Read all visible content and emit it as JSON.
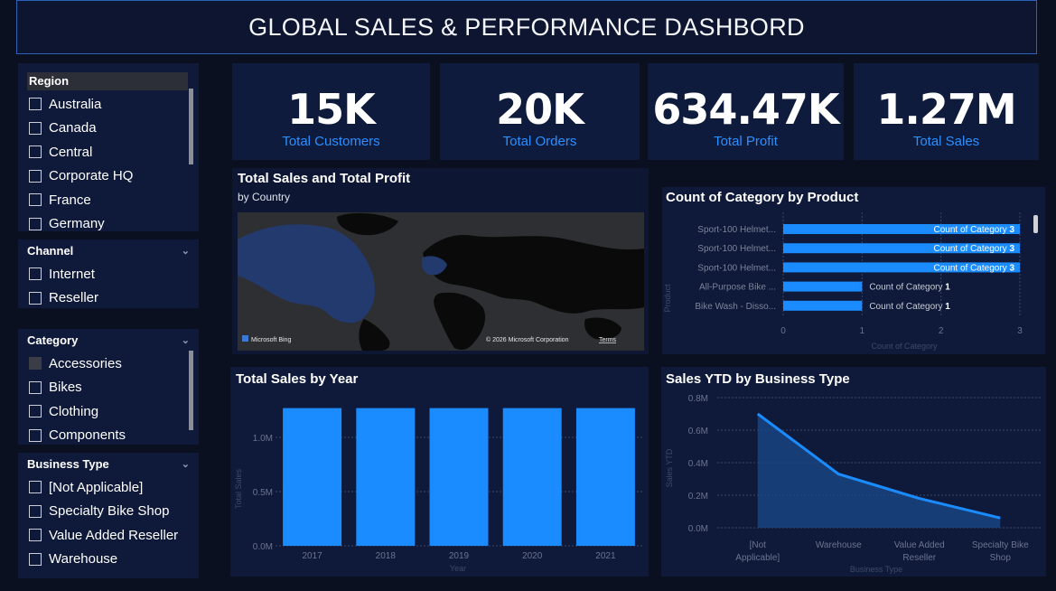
{
  "title": "GLOBAL SALES & PERFORMANCE DASHBORD",
  "slicers": {
    "region": {
      "header": "Region",
      "items": [
        "Australia",
        "Canada",
        "Central",
        "Corporate HQ",
        "France",
        "Germany"
      ]
    },
    "channel": {
      "header": "Channel",
      "items": [
        "Internet",
        "Reseller"
      ]
    },
    "category": {
      "header": "Category",
      "items": [
        "Accessories",
        "Bikes",
        "Clothing",
        "Components"
      ]
    },
    "business_type": {
      "header": "Business Type",
      "items": [
        "[Not Applicable]",
        "Specialty Bike Shop",
        "Value Added Reseller",
        "Warehouse"
      ]
    }
  },
  "kpis": [
    {
      "value": "15K",
      "label": "Total Customers"
    },
    {
      "value": "20K",
      "label": "Total Orders"
    },
    {
      "value": "634.47K",
      "label": "Total Profit"
    },
    {
      "value": "1.27M",
      "label": "Total Sales"
    }
  ],
  "map": {
    "title": "Total Sales and Total Profit",
    "subtitle": "by Country",
    "attribution": "© 2026 Microsoft Corporation",
    "terms": "Terms",
    "logo": "Microsoft Bing"
  },
  "colors": {
    "accent": "#1a8cff",
    "kpi_label": "#2b8fff",
    "panel": "#0e1733"
  },
  "chart_data": [
    {
      "type": "bar",
      "orientation": "horizontal",
      "title": "Count of Category by Product",
      "xlabel": "Count of Category",
      "ylabel": "Product",
      "categories": [
        "Sport-100 Helmet...",
        "Sport-100 Helmet...",
        "Sport-100 Helmet...",
        "All-Purpose Bike ...",
        "Bike Wash - Disso..."
      ],
      "values": [
        3,
        3,
        3,
        1,
        1
      ],
      "data_label_prefix": "Count of Category",
      "xlim": [
        0,
        3
      ],
      "xticks": [
        "0",
        "1",
        "2",
        "3"
      ]
    },
    {
      "type": "bar",
      "title": "Total Sales by Year",
      "xlabel": "Year",
      "ylabel": "Total Sales",
      "categories": [
        "2017",
        "2018",
        "2019",
        "2020",
        "2021"
      ],
      "values": [
        1.27,
        1.27,
        1.27,
        1.27,
        1.27
      ],
      "unit": "M",
      "ylim": [
        0,
        1.4
      ],
      "yticks": [
        "0.0M",
        "0.5M",
        "1.0M"
      ]
    },
    {
      "type": "area",
      "title": "Sales YTD by Business Type",
      "xlabel": "Business Type",
      "ylabel": "Sales YTD",
      "categories": [
        "[Not Applicable]",
        "Warehouse",
        "Value Added Reseller",
        "Specialty Bike Shop"
      ],
      "values": [
        0.7,
        0.33,
        0.18,
        0.06
      ],
      "unit": "M",
      "ylim": [
        0,
        0.8
      ],
      "yticks": [
        "0.0M",
        "0.2M",
        "0.4M",
        "0.6M",
        "0.8M"
      ]
    }
  ]
}
